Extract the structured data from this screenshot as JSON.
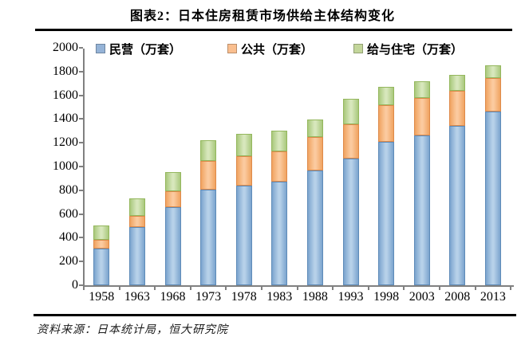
{
  "title": "图表2：日本住房租赁市场供给主体结构变化",
  "source": "资料来源：日本统计局，恒大研究院",
  "colors": {
    "private_blue": "#95B3D7",
    "public_orange": "#FABF8F",
    "company_green": "#C3D69B",
    "axis_gray": "#808080",
    "rule_black": "#000000"
  },
  "chart_data": {
    "type": "bar",
    "stacked": true,
    "title": "图表2：日本住房租赁市场供给主体结构变化",
    "categories": [
      "1958",
      "1963",
      "1968",
      "1973",
      "1978",
      "1983",
      "1988",
      "1993",
      "1998",
      "2003",
      "2008",
      "2013"
    ],
    "series": [
      {
        "name": "民营（万套）",
        "color": "#95B3D7",
        "values": [
          310,
          490,
          660,
          805,
          840,
          875,
          965,
          1070,
          1210,
          1260,
          1340,
          1460
        ]
      },
      {
        "name": "公共（万套）",
        "color": "#FABF8F",
        "values": [
          70,
          95,
          135,
          245,
          245,
          255,
          285,
          285,
          305,
          315,
          300,
          285
        ]
      },
      {
        "name": "给与住宅（万套）",
        "color": "#C3D69B",
        "values": [
          125,
          145,
          160,
          170,
          190,
          175,
          145,
          215,
          155,
          140,
          130,
          105
        ]
      }
    ],
    "stack_totals": [
      505,
      730,
      955,
      1220,
      1275,
      1305,
      1395,
      1570,
      1670,
      1715,
      1770,
      1850
    ],
    "xlabel": "",
    "ylabel": "",
    "ylim": [
      0,
      2000
    ],
    "ytick_step": 200,
    "grid": false,
    "legend_position": "top"
  }
}
